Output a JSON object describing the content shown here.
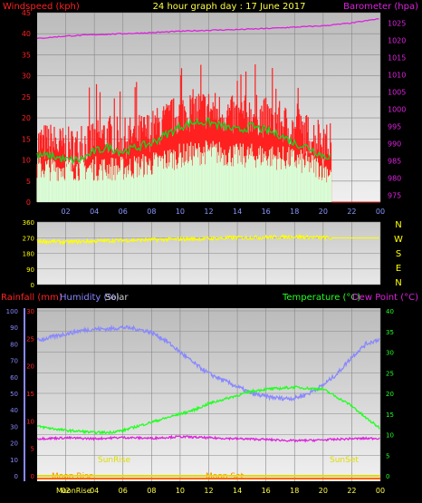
{
  "header": {
    "left_title": "Windspeed (kph)",
    "center_title": "24 hour graph day : 17 June 2017",
    "right_title": "Barometer (hpa)"
  },
  "colors": {
    "windspeed": "#ff2020",
    "gust": "#ff0000",
    "wind_avg": "#22cc22",
    "wind_low": "#d8ffd8",
    "barometer": "#dd22dd",
    "direction": "#ffff00",
    "rainfall": "#ff2222",
    "humidity": "#8888ff",
    "solar": "#cccccc",
    "temperature": "#22ff22",
    "dew_point": "#dd22dd",
    "sun_moon": "#dddd00",
    "moon": "#ff8800"
  },
  "time_labels": [
    "02",
    "04",
    "06",
    "08",
    "10",
    "12",
    "14",
    "16",
    "18",
    "20",
    "22",
    "00"
  ],
  "panel3_header": {
    "rainfall": "Rainfall (mm)",
    "humidity": "Humidity (%)",
    "solar": "Solar",
    "temperature": "Temperature (°C)",
    "dew_point": "Dew Point (°C)"
  },
  "events": {
    "sunrise": "SunRise",
    "sunset": "SunSet",
    "moonrise": "Moon Rise",
    "moonset": "Moon Set",
    "moonrise_bottom": "MoonRise"
  },
  "direction_letters": [
    "N",
    "W",
    "S",
    "E",
    "N"
  ],
  "chart_data": [
    {
      "type": "line",
      "title": "24 hour graph day : 17 June 2017",
      "xlabel": "",
      "x_ticks": [
        "02",
        "04",
        "06",
        "08",
        "10",
        "12",
        "14",
        "16",
        "18",
        "20",
        "22",
        "00"
      ],
      "y_left_label": "Windspeed (kph)",
      "y_left_ticks": [
        0,
        5,
        10,
        15,
        20,
        25,
        30,
        35,
        40,
        45
      ],
      "y_left_range": [
        0,
        45
      ],
      "y_right_label": "Barometer (hpa)",
      "y_right_ticks": [
        975,
        980,
        985,
        990,
        995,
        1000,
        1005,
        1010,
        1015,
        1020,
        1025
      ],
      "y_right_range": [
        973,
        1028
      ],
      "series": [
        {
          "name": "Windspeed (kph)",
          "hours": [
            0,
            1,
            2,
            3,
            4,
            5,
            6,
            7,
            8,
            9,
            10,
            11,
            12,
            13,
            14,
            15,
            16,
            17,
            18,
            19,
            20,
            20.6
          ],
          "values": [
            14,
            14,
            13,
            13,
            15,
            16,
            15,
            16,
            17,
            19,
            21,
            22,
            22,
            21,
            20,
            21,
            20,
            19,
            17,
            16,
            14,
            14
          ]
        },
        {
          "name": "",
          "hours": [
            0,
            2,
            4,
            6,
            8,
            10,
            12,
            14,
            16,
            18,
            20,
            20.6
          ],
          "values": [
            8,
            8,
            8,
            8,
            9,
            11,
            12,
            11,
            11,
            10,
            8,
            7
          ]
        },
        {
          "name": "Barometer (hpa)",
          "hours": [
            0,
            2,
            4,
            6,
            8,
            10,
            12,
            14,
            16,
            18,
            20,
            22,
            24
          ],
          "values": [
            1020.5,
            1021.2,
            1021.6,
            1021.9,
            1022.2,
            1022.6,
            1022.9,
            1023.1,
            1023.4,
            1023.8,
            1024.2,
            1025,
            1026.3
          ]
        }
      ],
      "grid": true
    },
    {
      "type": "line",
      "y_ticks": [
        0,
        90,
        180,
        270,
        360
      ],
      "y_range": [
        0,
        360
      ],
      "series": [
        {
          "name": "",
          "hours": [
            0,
            2,
            4,
            6,
            8,
            10,
            12,
            14,
            16,
            18,
            20,
            22,
            24
          ],
          "values": [
            250,
            245,
            250,
            255,
            258,
            262,
            265,
            270,
            272,
            275,
            270,
            268,
            268
          ]
        }
      ]
    },
    {
      "type": "line",
      "x_ticks": [
        "02",
        "04",
        "06",
        "08",
        "10",
        "12",
        "14",
        "16",
        "18",
        "20",
        "22",
        "00"
      ],
      "y_rain_ticks": [
        0,
        5,
        10,
        15,
        20,
        25,
        30
      ],
      "y_humidity_ticks": [
        0,
        10,
        20,
        30,
        40,
        50,
        60,
        70,
        80,
        90,
        100
      ],
      "y_temp_ticks": [
        0,
        5,
        10,
        15,
        20,
        25,
        30,
        35,
        40
      ],
      "series": [
        {
          "name": "Humidity (%)",
          "hours": [
            0,
            1,
            2,
            3,
            4,
            5,
            6,
            7,
            8,
            9,
            10,
            11,
            12,
            13,
            14,
            15,
            16,
            17,
            18,
            19,
            20,
            21,
            22,
            23,
            24
          ],
          "values": [
            82,
            84,
            86,
            88,
            89,
            89,
            90,
            89,
            87,
            82,
            75,
            68,
            62,
            58,
            54,
            50,
            48,
            47,
            47,
            50,
            55,
            62,
            72,
            80,
            83
          ]
        },
        {
          "name": "Temperature (°C)",
          "hours": [
            0,
            1,
            2,
            3,
            4,
            5,
            6,
            7,
            8,
            9,
            10,
            11,
            12,
            13,
            14,
            15,
            16,
            17,
            18,
            19,
            20,
            21,
            22,
            23,
            24
          ],
          "values": [
            12,
            11.5,
            11,
            10.8,
            10.5,
            10.5,
            11,
            12,
            13,
            14,
            15,
            16,
            17.5,
            18.5,
            19.5,
            20.5,
            21,
            21.2,
            21.5,
            21.2,
            21,
            19,
            17,
            14,
            11.5
          ]
        },
        {
          "name": "Dew Point (°C)",
          "hours": [
            0,
            2,
            4,
            6,
            8,
            10,
            12,
            14,
            16,
            18,
            20,
            22,
            24
          ],
          "values": [
            9,
            9.2,
            9,
            9.3,
            9.1,
            9.5,
            9.2,
            9,
            8.8,
            8.5,
            8.7,
            9,
            9.1
          ]
        }
      ],
      "grid": true
    }
  ]
}
